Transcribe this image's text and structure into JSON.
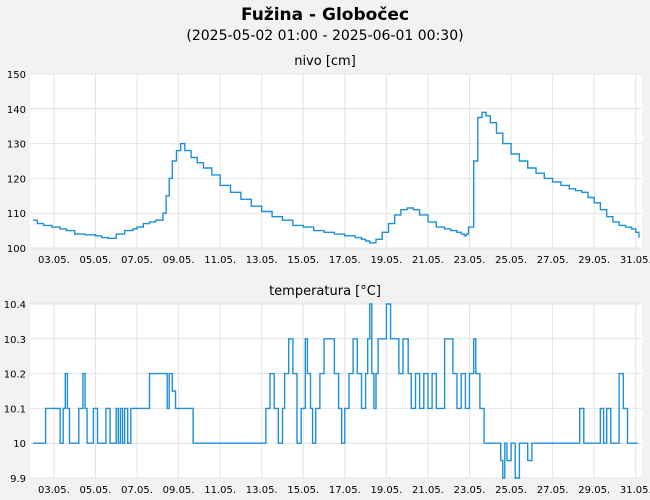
{
  "title": "Fužina - Globočec",
  "subtitle": "(2025-05-02 01:00 - 2025-06-01 00:30)",
  "colors": {
    "line": "#1f8fd8",
    "grid": "#e4e4e4",
    "panel_bg": "#ffffff",
    "page_bg": "#f2f2f2"
  },
  "chart_data": [
    {
      "type": "line",
      "title": "nivo [cm]",
      "ylim": [
        100,
        150
      ],
      "yticks": [
        "100",
        "110",
        "120",
        "130",
        "140",
        "150"
      ],
      "xlim": [
        1.85,
        31.3
      ],
      "xticks": [
        "03.05.",
        "05.05.",
        "07.05.",
        "09.05.",
        "11.05.",
        "13.05.",
        "15.05.",
        "17.05.",
        "19.05.",
        "21.05.",
        "23.05.",
        "25.05.",
        "27.05.",
        "29.05.",
        "31.05."
      ],
      "grid": true,
      "series": [
        {
          "x": [
            2.0,
            2.2,
            2.5,
            2.9,
            3.3,
            3.6,
            4.0,
            4.5,
            5.0,
            5.3,
            5.6,
            6.0,
            6.4,
            6.8,
            7.0,
            7.3,
            7.6,
            7.9,
            8.1,
            8.25,
            8.4,
            8.55,
            8.7,
            8.9,
            9.1,
            9.3,
            9.6,
            9.9,
            10.2,
            10.6,
            11.0,
            11.5,
            12.0,
            12.5,
            13.0,
            13.5,
            14.0,
            14.5,
            15.0,
            15.5,
            16.0,
            16.5,
            17.0,
            17.5,
            17.8,
            18.0,
            18.2,
            18.5,
            18.8,
            19.1,
            19.4,
            19.7,
            20.0,
            20.3,
            20.6,
            21.0,
            21.4,
            21.8,
            22.1,
            22.4,
            22.6,
            22.75,
            22.85,
            22.95,
            23.2,
            23.4,
            23.6,
            23.8,
            24.0,
            24.3,
            24.6,
            25.0,
            25.4,
            25.8,
            26.2,
            26.6,
            27.0,
            27.4,
            27.8,
            28.1,
            28.4,
            28.7,
            29.0,
            29.3,
            29.6,
            29.9,
            30.2,
            30.5,
            30.8,
            31.0,
            31.15
          ],
          "y": [
            108,
            107,
            106.5,
            106,
            105.5,
            105,
            104,
            103.8,
            103.5,
            103,
            102.8,
            104,
            105,
            105.5,
            106,
            107,
            107.5,
            108,
            108,
            110,
            115,
            120,
            125,
            128,
            130,
            128,
            126,
            124.5,
            123,
            121,
            118,
            116,
            114,
            112,
            110.5,
            109,
            108,
            106.5,
            106,
            105,
            104.5,
            104,
            103.5,
            103,
            102.5,
            102,
            101.5,
            102.5,
            104.5,
            107,
            109.5,
            111,
            111.5,
            111,
            109.5,
            107.5,
            106,
            105.5,
            105,
            104.5,
            104,
            103.5,
            104,
            106,
            125,
            137.5,
            139,
            138,
            136,
            133,
            130,
            127,
            125,
            123,
            121.5,
            120,
            119,
            118,
            117,
            116.5,
            116,
            114.5,
            113,
            111,
            109,
            107.5,
            106.5,
            106,
            105.5,
            104.5,
            103
          ]
        }
      ]
    },
    {
      "type": "line",
      "title": "temperatura [°C]",
      "ylim": [
        9.9,
        10.4
      ],
      "yticks": [
        "9.9",
        "10",
        "10.1",
        "10.2",
        "10.3",
        "10.4"
      ],
      "xlim": [
        1.85,
        31.3
      ],
      "xticks": [
        "03.05.",
        "05.05.",
        "07.05.",
        "09.05.",
        "11.05.",
        "13.05.",
        "15.05.",
        "17.05.",
        "19.05.",
        "21.05.",
        "23.05.",
        "25.05.",
        "27.05.",
        "29.05.",
        "31.05."
      ],
      "grid": true,
      "series": [
        {
          "x": [
            2.0,
            2.5,
            2.6,
            2.8,
            3.3,
            3.45,
            3.55,
            3.65,
            3.75,
            3.9,
            4.2,
            4.4,
            4.5,
            4.6,
            4.75,
            4.9,
            5.1,
            5.3,
            5.5,
            5.7,
            6.0,
            6.1,
            6.2,
            6.3,
            6.4,
            6.55,
            6.7,
            7.0,
            7.3,
            7.6,
            7.9,
            8.2,
            8.45,
            8.55,
            8.7,
            8.85,
            9.0,
            9.3,
            9.7,
            10.0,
            10.5,
            11.0,
            11.5,
            12.0,
            12.5,
            13.0,
            13.2,
            13.4,
            13.6,
            13.8,
            14.0,
            14.1,
            14.3,
            14.5,
            14.7,
            14.9,
            15.1,
            15.2,
            15.35,
            15.45,
            15.6,
            15.8,
            16.0,
            16.3,
            16.5,
            16.7,
            16.85,
            17.0,
            17.2,
            17.4,
            17.6,
            17.8,
            18.0,
            18.1,
            18.2,
            18.3,
            18.4,
            18.5,
            18.6,
            18.8,
            19.0,
            19.2,
            19.4,
            19.6,
            19.8,
            19.9,
            20.05,
            20.2,
            20.4,
            20.6,
            20.8,
            21.0,
            21.2,
            21.4,
            21.6,
            21.8,
            22.0,
            22.2,
            22.4,
            22.6,
            22.8,
            23.0,
            23.2,
            23.3,
            23.5,
            23.7,
            23.9,
            24.2,
            24.5,
            24.6,
            24.7,
            24.8,
            25.0,
            25.2,
            25.4,
            25.6,
            25.8,
            26.0,
            26.5,
            27.0,
            27.5,
            28.0,
            28.3,
            28.5,
            28.7,
            28.9,
            29.1,
            29.3,
            29.45,
            29.6,
            29.8,
            30.0,
            30.2,
            30.4,
            30.6,
            31.1
          ],
          "y": [
            10.0,
            10.0,
            10.1,
            10.1,
            10.0,
            10.1,
            10.2,
            10.1,
            10.0,
            10.0,
            10.1,
            10.2,
            10.1,
            10.0,
            10.0,
            10.1,
            10.0,
            10.0,
            10.1,
            10.0,
            10.1,
            10.0,
            10.1,
            10.0,
            10.1,
            10.0,
            10.1,
            10.1,
            10.1,
            10.2,
            10.2,
            10.2,
            10.1,
            10.2,
            10.15,
            10.1,
            10.1,
            10.1,
            10.0,
            10.0,
            10.0,
            10.0,
            10.0,
            10.0,
            10.0,
            10.0,
            10.1,
            10.2,
            10.1,
            10.0,
            10.1,
            10.2,
            10.3,
            10.2,
            10.0,
            10.1,
            10.3,
            10.2,
            10.1,
            10.0,
            10.1,
            10.2,
            10.3,
            10.3,
            10.2,
            10.1,
            10.0,
            10.1,
            10.2,
            10.3,
            10.2,
            10.1,
            10.2,
            10.3,
            10.4,
            10.2,
            10.1,
            10.2,
            10.3,
            10.3,
            10.4,
            10.3,
            10.3,
            10.2,
            10.3,
            10.3,
            10.2,
            10.1,
            10.2,
            10.1,
            10.2,
            10.1,
            10.2,
            10.1,
            10.1,
            10.3,
            10.3,
            10.2,
            10.1,
            10.2,
            10.1,
            10.2,
            10.3,
            10.2,
            10.1,
            10.0,
            10.0,
            10.0,
            9.95,
            9.9,
            10.0,
            9.95,
            10.0,
            9.9,
            10.0,
            10.0,
            9.95,
            10.0,
            10.0,
            10.0,
            10.0,
            10.0,
            10.1,
            10.0,
            10.0,
            10.0,
            10.0,
            10.1,
            10.0,
            10.1,
            10.0,
            10.0,
            10.2,
            10.1,
            10.0,
            10.0
          ]
        }
      ]
    }
  ]
}
